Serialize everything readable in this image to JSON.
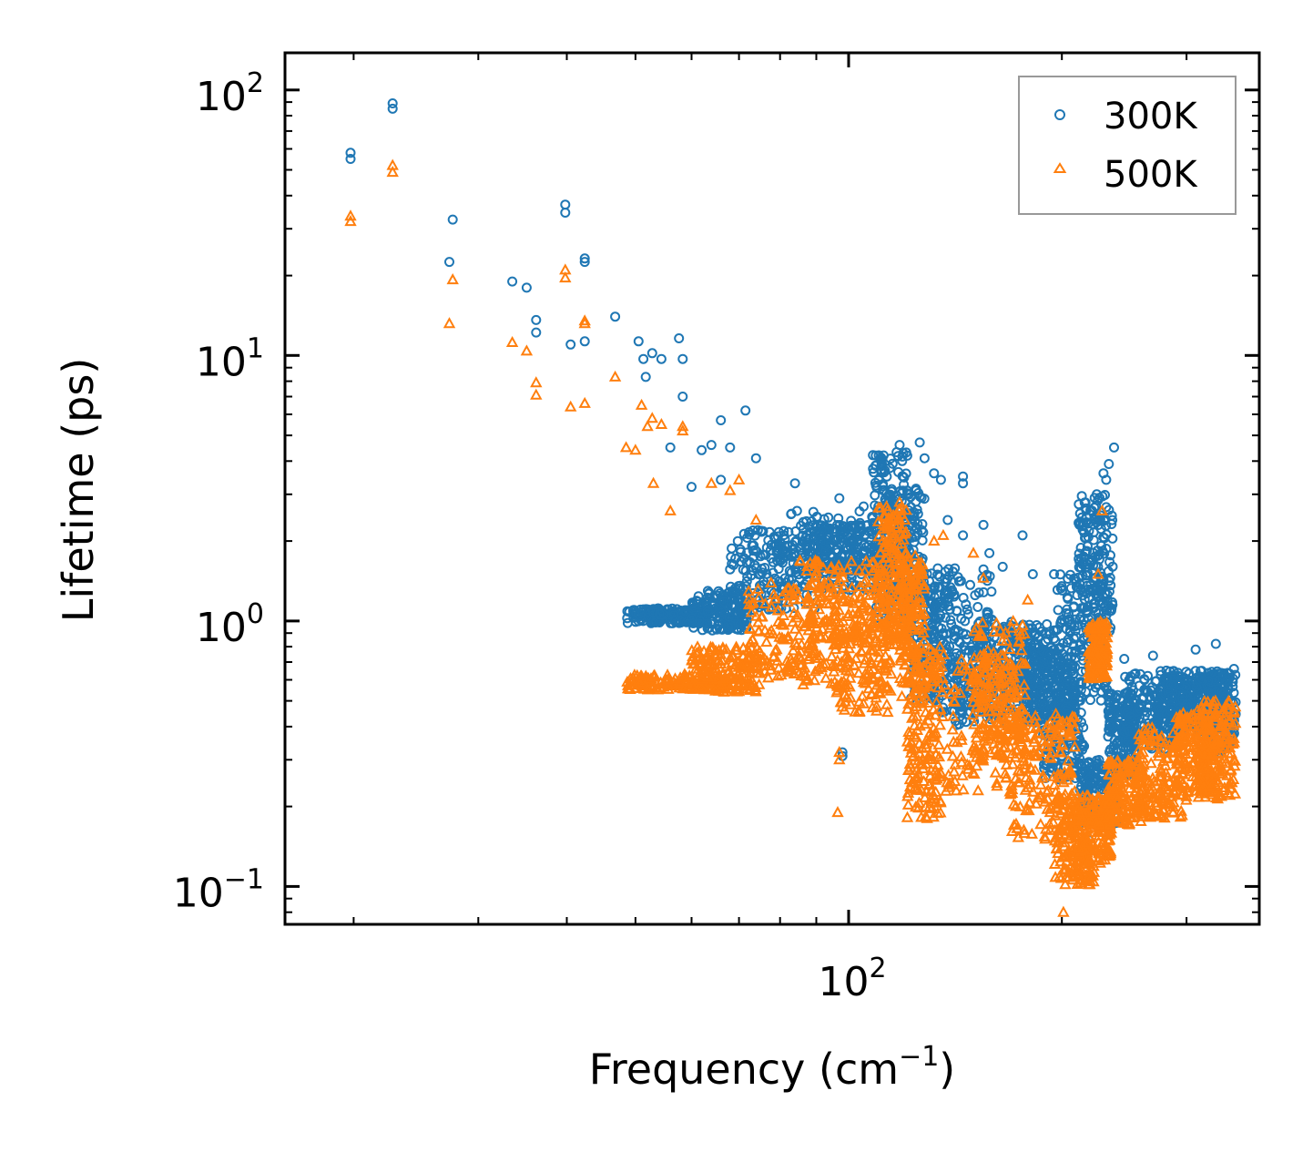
{
  "chart_data": {
    "type": "scatter",
    "title": "",
    "xlabel": "Frequency (cm",
    "xlabel_sup": "−1",
    "xlabel_close": ")",
    "ylabel": "Lifetime (ps)",
    "xscale": "log",
    "yscale": "log",
    "xlim": [
      16,
      380
    ],
    "ylim": [
      0.072,
      138
    ],
    "x_ticks": [
      {
        "value": 100,
        "base": "10",
        "exp": "2"
      }
    ],
    "y_ticks": [
      {
        "value": 0.1,
        "base": "10",
        "exp": "−1"
      },
      {
        "value": 1,
        "base": "10",
        "exp": "0"
      },
      {
        "value": 10,
        "base": "10",
        "exp": "1"
      },
      {
        "value": 100,
        "base": "10",
        "exp": "2"
      }
    ],
    "legend_position": "top-right",
    "series": [
      {
        "name": "300K",
        "marker": "circle",
        "color": "#1f77b4",
        "points": [
          [
            19.8,
            58
          ],
          [
            19.8,
            55
          ],
          [
            22.7,
            89
          ],
          [
            22.7,
            85
          ],
          [
            27.3,
            22.5
          ],
          [
            27.6,
            32.5
          ],
          [
            33.5,
            19
          ],
          [
            35.1,
            18
          ],
          [
            36.2,
            13.6
          ],
          [
            36.2,
            12.2
          ],
          [
            39.8,
            37
          ],
          [
            39.8,
            34.5
          ],
          [
            40.5,
            11
          ],
          [
            42.4,
            23.2
          ],
          [
            42.4,
            22.5
          ],
          [
            42.4,
            11.3
          ],
          [
            46.8,
            14
          ],
          [
            50.5,
            11.3
          ],
          [
            51.3,
            9.7
          ],
          [
            51.7,
            8.3
          ],
          [
            52.8,
            10.2
          ],
          [
            54.4,
            9.7
          ],
          [
            57.6,
            11.6
          ],
          [
            58.3,
            9.7
          ],
          [
            58.3,
            7
          ],
          [
            62,
            4.4
          ],
          [
            64,
            4.6
          ],
          [
            66,
            5.7
          ],
          [
            68,
            4.5
          ],
          [
            71.5,
            6.2
          ],
          [
            56,
            4.5
          ],
          [
            60,
            3.2
          ],
          [
            66,
            3.4
          ],
          [
            74,
            4.1
          ],
          [
            84,
            3.3
          ],
          [
            97,
            2.9
          ],
          [
            98,
            0.32
          ],
          [
            98,
            0.31
          ],
          [
            105,
            2.7
          ],
          [
            110,
            1.9
          ],
          [
            118,
            4.6
          ],
          [
            119,
            4.0
          ],
          [
            121,
            3.1
          ],
          [
            126,
            4.7
          ],
          [
            128,
            4.1
          ],
          [
            132,
            3.6
          ],
          [
            135,
            3.4
          ],
          [
            138,
            2.4
          ],
          [
            145,
            3.5
          ],
          [
            145,
            3.3
          ],
          [
            145,
            2.1
          ],
          [
            155,
            2.3
          ],
          [
            158,
            1.8
          ],
          [
            165,
            1.6
          ],
          [
            176,
            2.1
          ],
          [
            182,
            1.5
          ],
          [
            195,
            1.5
          ],
          [
            222,
            0.54
          ],
          [
            224,
            3.0
          ],
          [
            229,
            3.6
          ],
          [
            231,
            3.4
          ],
          [
            233,
            3.9
          ],
          [
            237,
            4.5
          ],
          [
            218,
            0.15
          ],
          [
            245,
            0.72
          ],
          [
            253,
            0.63
          ],
          [
            269,
            0.74
          ],
          [
            281,
            0.65
          ],
          [
            309,
            0.78
          ],
          [
            330,
            0.82
          ],
          [
            350,
            0.66
          ]
        ],
        "bands": [
          [
            48.5,
            63,
            0.98,
            1.12
          ],
          [
            60,
            72,
            0.92,
            1.3
          ],
          [
            68,
            90,
            1.1,
            2.2
          ],
          [
            78,
            110,
            1.3,
            2.6
          ],
          [
            88,
            115,
            1.5,
            2.3
          ],
          [
            108,
            121,
            1.0,
            4.4
          ],
          [
            113,
            128,
            1.2,
            3.2
          ],
          [
            121,
            140,
            0.5,
            1.5
          ],
          [
            128,
            160,
            0.45,
            1.6
          ],
          [
            140,
            190,
            0.4,
            0.95
          ],
          [
            150,
            195,
            0.55,
            1.0
          ],
          [
            176,
            210,
            0.4,
            0.8
          ],
          [
            188,
            215,
            0.25,
            0.55
          ],
          [
            195,
            232,
            0.5,
            1.5
          ],
          [
            210,
            236,
            0.9,
            3.0
          ],
          [
            212,
            240,
            0.17,
            0.3
          ],
          [
            232,
            255,
            0.26,
            0.55
          ],
          [
            245,
            290,
            0.33,
            0.65
          ],
          [
            270,
            330,
            0.38,
            0.62
          ],
          [
            285,
            340,
            0.4,
            0.65
          ],
          [
            320,
            352,
            0.32,
            0.65
          ]
        ]
      },
      {
        "name": "500K",
        "marker": "triangle",
        "color": "#ff7f0e",
        "points": [
          [
            19.8,
            33.5
          ],
          [
            19.8,
            32
          ],
          [
            22.7,
            52
          ],
          [
            22.7,
            49
          ],
          [
            27.3,
            13.2
          ],
          [
            27.6,
            19.3
          ],
          [
            33.5,
            11.2
          ],
          [
            35.1,
            10.4
          ],
          [
            36.2,
            7.9
          ],
          [
            36.2,
            7.1
          ],
          [
            39.8,
            21
          ],
          [
            39.8,
            19.6
          ],
          [
            40.5,
            6.4
          ],
          [
            42.4,
            13.5
          ],
          [
            42.4,
            13.2
          ],
          [
            42.4,
            6.6
          ],
          [
            46.8,
            8.3
          ],
          [
            48.5,
            4.5
          ],
          [
            50,
            4.4
          ],
          [
            51,
            6.5
          ],
          [
            52,
            5.4
          ],
          [
            52.8,
            5.8
          ],
          [
            54.4,
            5.5
          ],
          [
            58.3,
            5.4
          ],
          [
            58.3,
            5.2
          ],
          [
            53,
            3.3
          ],
          [
            56,
            2.6
          ],
          [
            64,
            3.3
          ],
          [
            68,
            3.1
          ],
          [
            70,
            3.4
          ],
          [
            74,
            2.4
          ],
          [
            97,
            0.32
          ],
          [
            97,
            0.3
          ],
          [
            96.5,
            0.19
          ],
          [
            118,
            2.8
          ],
          [
            120,
            2.4
          ],
          [
            132,
            2.0
          ],
          [
            136,
            2.1
          ],
          [
            150,
            1.8
          ],
          [
            155,
            1.45
          ],
          [
            179,
            1.2
          ],
          [
            201,
            0.08
          ],
          [
            228,
            2.6
          ],
          [
            225,
            1.5
          ]
        ],
        "bands": [
          [
            48.5,
            68,
            0.55,
            0.63
          ],
          [
            60,
            75,
            0.54,
            0.8
          ],
          [
            72,
            95,
            0.6,
            1.4
          ],
          [
            85,
            110,
            0.55,
            1.7
          ],
          [
            95,
            115,
            0.45,
            1.3
          ],
          [
            110,
            121,
            0.8,
            2.7
          ],
          [
            118,
            128,
            0.5,
            1.8
          ],
          [
            121,
            135,
            0.18,
            0.8
          ],
          [
            130,
            175,
            0.22,
            0.75
          ],
          [
            150,
            178,
            0.3,
            1.0
          ],
          [
            170,
            210,
            0.15,
            0.45
          ],
          [
            195,
            222,
            0.1,
            0.22
          ],
          [
            210,
            235,
            0.12,
            0.22
          ],
          [
            218,
            232,
            0.6,
            1.0
          ],
          [
            232,
            260,
            0.17,
            0.3
          ],
          [
            255,
            300,
            0.18,
            0.4
          ],
          [
            290,
            330,
            0.22,
            0.45
          ],
          [
            310,
            352,
            0.21,
            0.5
          ]
        ]
      }
    ]
  }
}
